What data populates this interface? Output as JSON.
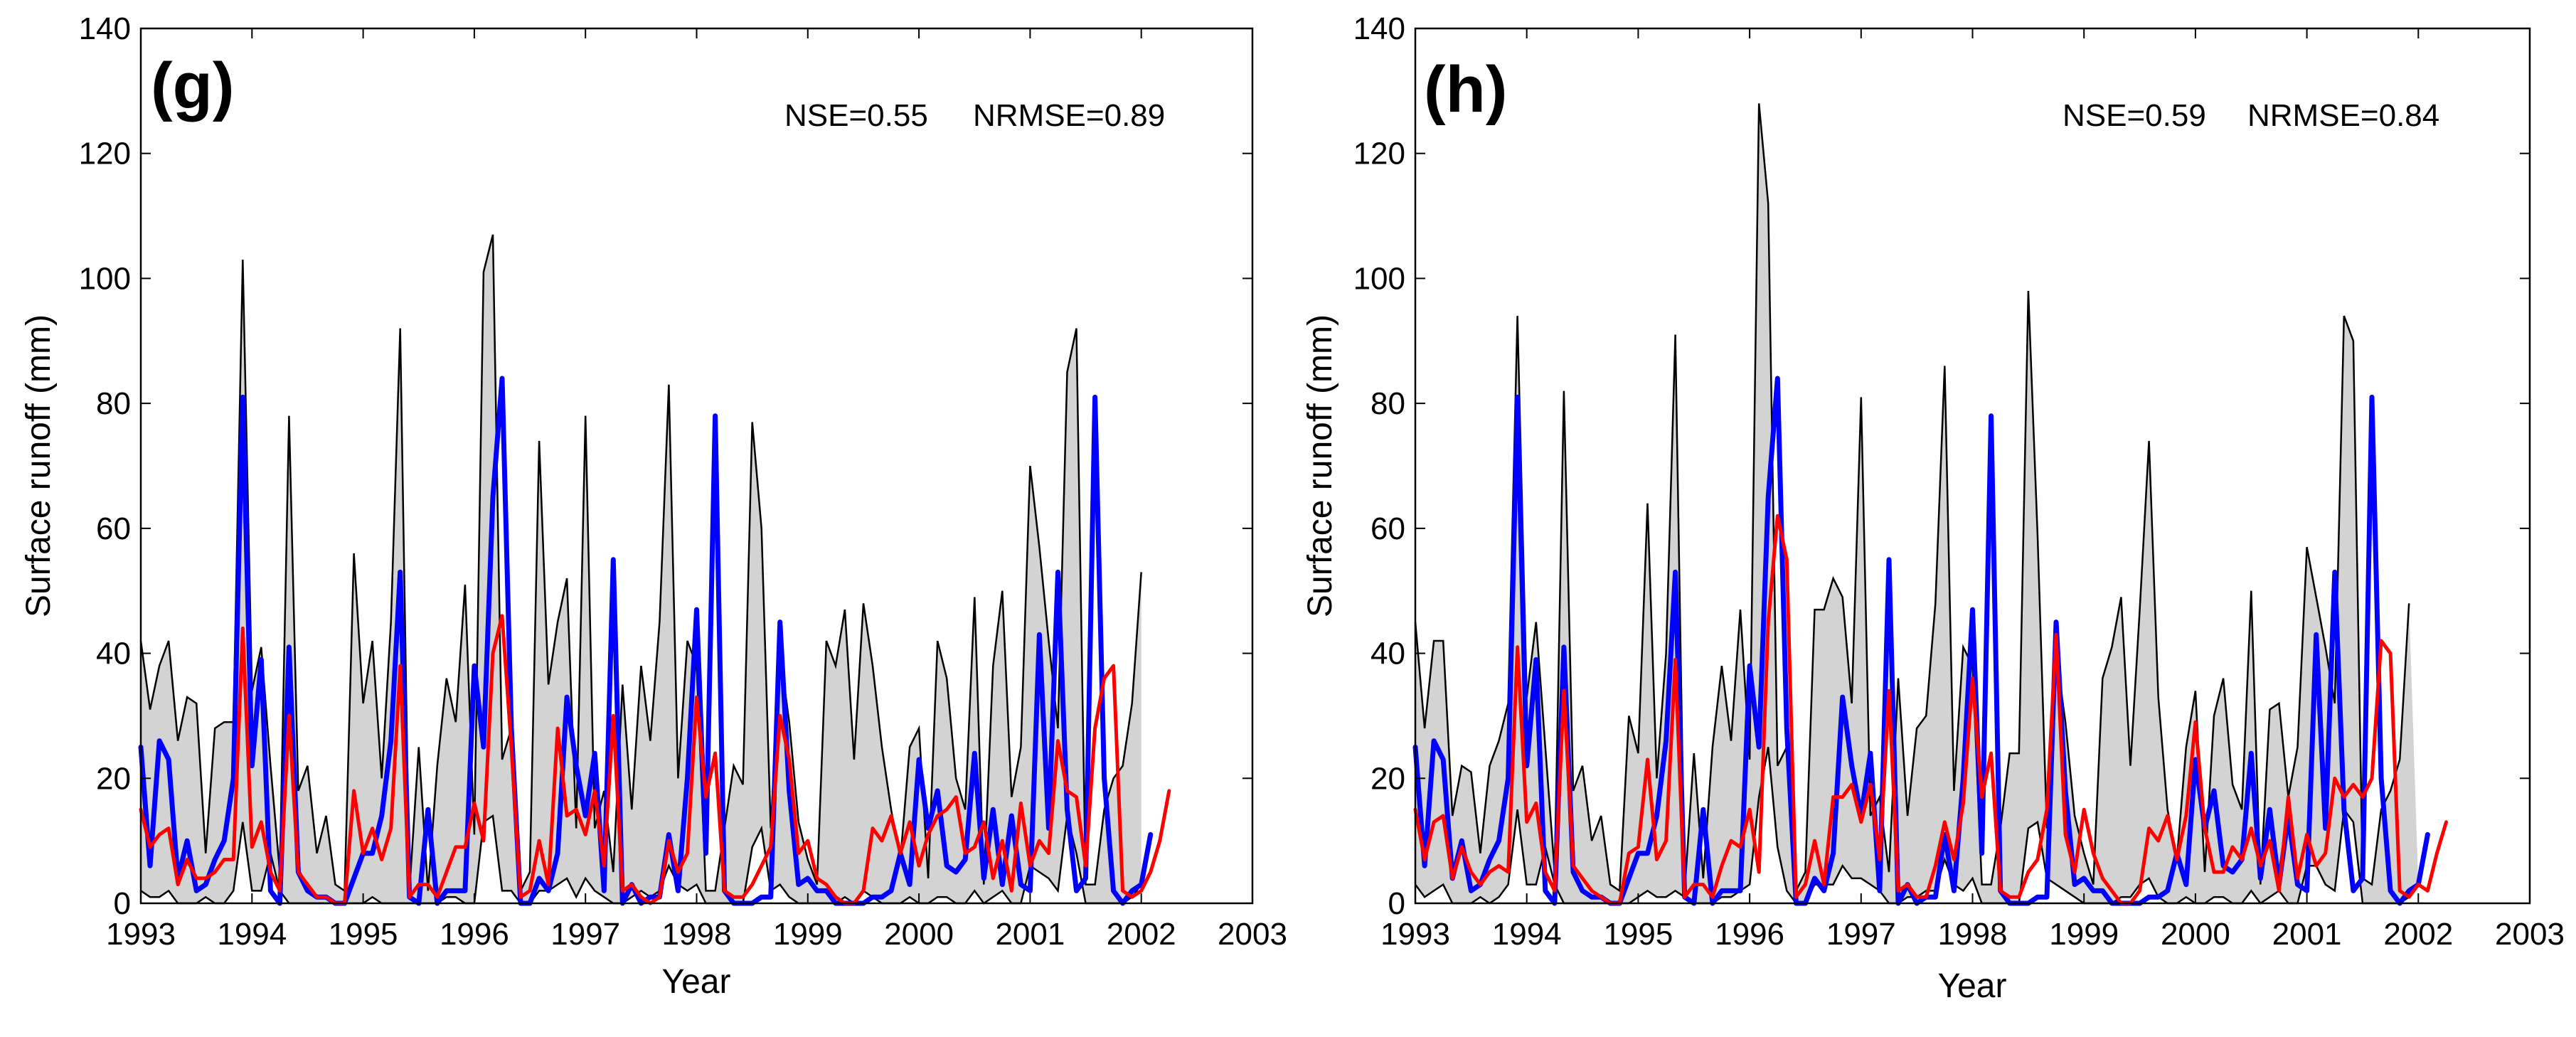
{
  "chart_data": [
    {
      "type": "line",
      "panel_label": "(g)",
      "annotation": {
        "nse": "NSE=0.55",
        "nrmse": "NRMSE=0.89"
      },
      "xlabel": "Year",
      "ylabel": "Surface runoff (mm)",
      "xlim": [
        1993,
        2003
      ],
      "ylim": [
        0,
        140
      ],
      "xticks": [
        1993,
        1994,
        1995,
        1996,
        1997,
        1998,
        1999,
        2000,
        2001,
        2002,
        2003
      ],
      "yticks": [
        0,
        20,
        40,
        60,
        80,
        100,
        120,
        140
      ],
      "grid": false,
      "legend": null,
      "months_per_year": 12,
      "series": [
        {
          "name": "band_upper",
          "role": "uncertainty-band-upper",
          "color": "#000000",
          "values": [
            42,
            31,
            38,
            42,
            26,
            33,
            32,
            8,
            28,
            29,
            29,
            103,
            34,
            41,
            22,
            5,
            78,
            18,
            22,
            8,
            14,
            3,
            2,
            56,
            32,
            42,
            20,
            45,
            92,
            2,
            25,
            2,
            22,
            36,
            29,
            51,
            11,
            101,
            107,
            23,
            28,
            2,
            5,
            74,
            35,
            45,
            52,
            12,
            78,
            12,
            18,
            5,
            35,
            15,
            38,
            26,
            45,
            83,
            20,
            42,
            38,
            2,
            2,
            12,
            22,
            19,
            77,
            60,
            12,
            40,
            29,
            13,
            7,
            3,
            42,
            38,
            47,
            23,
            48,
            38,
            25,
            15,
            7,
            25,
            28,
            4,
            42,
            36,
            20,
            15,
            49,
            3,
            38,
            50,
            17,
            25,
            70,
            57,
            42,
            28,
            85,
            92,
            3,
            3,
            15,
            20,
            22,
            32,
            53
          ]
        },
        {
          "name": "band_lower",
          "role": "uncertainty-band-lower",
          "color": "#000000",
          "values": [
            2,
            1,
            1,
            2,
            0,
            0,
            0,
            1,
            0,
            0,
            2,
            13,
            2,
            2,
            8,
            2,
            0,
            0,
            0,
            0,
            0,
            0,
            0,
            0,
            0,
            1,
            0,
            0,
            0,
            0,
            0,
            0,
            0,
            1,
            1,
            0,
            0,
            13,
            14,
            2,
            2,
            0,
            0,
            2,
            2,
            3,
            4,
            1,
            4,
            2,
            1,
            0,
            0,
            1,
            2,
            1,
            2,
            6,
            3,
            2,
            3,
            0,
            0,
            0,
            0,
            0,
            9,
            12,
            2,
            3,
            1,
            0,
            0,
            0,
            0,
            0,
            1,
            0,
            2,
            1,
            0,
            0,
            0,
            1,
            0,
            0,
            1,
            1,
            0,
            0,
            2,
            0,
            1,
            2,
            0,
            0,
            6,
            5,
            4,
            2,
            14,
            8,
            0,
            0,
            0,
            0,
            0,
            1,
            3
          ]
        },
        {
          "name": "observed",
          "role": "blue-line",
          "color": "#0000ff",
          "values": [
            25,
            6,
            26,
            23,
            4,
            10,
            2,
            3,
            7,
            10,
            20,
            81,
            22,
            39,
            2,
            0,
            41,
            5,
            2,
            1,
            1,
            0,
            0,
            4,
            8,
            8,
            14,
            26,
            53,
            1,
            0,
            15,
            0,
            2,
            2,
            2,
            38,
            25,
            65,
            84,
            28,
            0,
            0,
            4,
            2,
            8,
            33,
            22,
            14,
            24,
            2,
            55,
            0,
            3,
            0,
            1,
            1,
            11,
            2,
            20,
            47,
            8,
            78,
            2,
            0,
            0,
            0,
            1,
            1,
            45,
            18,
            3,
            4,
            2,
            2,
            0,
            0,
            0,
            0,
            1,
            1,
            2,
            8,
            3,
            23,
            12,
            18,
            6,
            5,
            7,
            24,
            4,
            15,
            3,
            14,
            3,
            2,
            43,
            12,
            53,
            15,
            2,
            4,
            81,
            20,
            2,
            0,
            2,
            3,
            11
          ]
        },
        {
          "name": "simulated",
          "role": "red-line",
          "color": "#ff0000",
          "values": [
            15,
            9,
            11,
            12,
            3,
            7,
            4,
            4,
            5,
            7,
            7,
            44,
            9,
            13,
            5,
            2,
            30,
            5,
            3,
            1,
            1,
            0,
            0,
            18,
            8,
            12,
            7,
            12,
            38,
            1,
            3,
            3,
            1,
            5,
            9,
            9,
            16,
            10,
            40,
            46,
            25,
            1,
            2,
            10,
            3,
            28,
            14,
            15,
            11,
            18,
            6,
            30,
            2,
            3,
            1,
            0,
            1,
            10,
            5,
            8,
            33,
            17,
            24,
            2,
            1,
            1,
            3,
            6,
            9,
            30,
            23,
            8,
            10,
            4,
            3,
            1,
            0,
            0,
            2,
            12,
            10,
            14,
            8,
            13,
            6,
            11,
            14,
            15,
            17,
            8,
            9,
            13,
            4,
            10,
            2,
            16,
            6,
            10,
            8,
            26,
            18,
            17,
            6,
            28,
            36,
            38,
            2,
            1,
            2,
            5,
            10,
            18
          ]
        }
      ]
    },
    {
      "type": "line",
      "panel_label": "(h)",
      "annotation": {
        "nse": "NSE=0.59",
        "nrmse": "NRMSE=0.84"
      },
      "xlabel": "Year",
      "ylabel": "Surface runoff (mm)",
      "xlim": [
        1993,
        2003
      ],
      "ylim": [
        0,
        140
      ],
      "xticks": [
        1993,
        1994,
        1995,
        1996,
        1997,
        1998,
        1999,
        2000,
        2001,
        2002,
        2003
      ],
      "yticks": [
        0,
        20,
        40,
        60,
        80,
        100,
        120,
        140
      ],
      "grid": false,
      "legend": null,
      "months_per_year": 12,
      "series": [
        {
          "name": "band_upper",
          "role": "uncertainty-band-upper",
          "color": "#000000",
          "values": [
            45,
            28,
            42,
            42,
            14,
            22,
            21,
            8,
            22,
            26,
            32,
            94,
            33,
            45,
            25,
            5,
            82,
            18,
            22,
            10,
            14,
            3,
            2,
            30,
            24,
            64,
            20,
            40,
            91,
            2,
            24,
            4,
            25,
            38,
            26,
            47,
            23,
            128,
            112,
            22,
            25,
            2,
            5,
            47,
            47,
            52,
            49,
            32,
            81,
            14,
            17,
            5,
            36,
            14,
            28,
            30,
            48,
            86,
            18,
            41,
            38,
            3,
            3,
            12,
            24,
            24,
            98,
            59,
            12,
            40,
            29,
            14,
            8,
            3,
            36,
            41,
            49,
            22,
            47,
            74,
            33,
            15,
            7,
            25,
            34,
            5,
            30,
            36,
            19,
            15,
            50,
            3,
            31,
            32,
            17,
            25,
            57,
            49,
            41,
            32,
            94,
            90,
            4,
            3,
            15,
            18,
            23,
            48
          ]
        },
        {
          "name": "band_lower",
          "role": "uncertainty-band-lower",
          "color": "#000000",
          "values": [
            3,
            1,
            2,
            3,
            0,
            0,
            0,
            1,
            0,
            1,
            3,
            15,
            3,
            3,
            9,
            3,
            0,
            0,
            0,
            0,
            0,
            0,
            0,
            0,
            1,
            2,
            1,
            1,
            2,
            1,
            0,
            0,
            0,
            1,
            1,
            2,
            3,
            17,
            25,
            9,
            2,
            0,
            0,
            3,
            3,
            3,
            6,
            4,
            4,
            3,
            2,
            0,
            0,
            1,
            1,
            2,
            2,
            7,
            3,
            2,
            4,
            0,
            0,
            0,
            0,
            0,
            12,
            13,
            4,
            3,
            2,
            1,
            0,
            0,
            0,
            0,
            1,
            1,
            3,
            4,
            1,
            0,
            0,
            1,
            0,
            0,
            1,
            1,
            0,
            0,
            2,
            0,
            1,
            2,
            0,
            0,
            6,
            6,
            3,
            2,
            15,
            13,
            0,
            0,
            0,
            0,
            0,
            1,
            3
          ]
        },
        {
          "name": "observed",
          "role": "blue-line",
          "color": "#0000ff",
          "values": [
            25,
            6,
            26,
            23,
            4,
            10,
            2,
            3,
            7,
            10,
            20,
            81,
            22,
            39,
            2,
            0,
            41,
            5,
            2,
            1,
            1,
            0,
            0,
            4,
            8,
            8,
            14,
            26,
            53,
            1,
            0,
            15,
            0,
            2,
            2,
            2,
            38,
            25,
            65,
            84,
            28,
            0,
            0,
            4,
            2,
            8,
            33,
            22,
            14,
            24,
            2,
            55,
            0,
            3,
            0,
            1,
            1,
            11,
            2,
            20,
            47,
            8,
            78,
            2,
            0,
            0,
            0,
            1,
            1,
            45,
            18,
            3,
            4,
            2,
            2,
            0,
            0,
            0,
            0,
            1,
            1,
            2,
            8,
            3,
            23,
            12,
            18,
            6,
            5,
            7,
            24,
            4,
            15,
            3,
            14,
            3,
            2,
            43,
            12,
            53,
            15,
            2,
            4,
            81,
            20,
            2,
            0,
            2,
            3,
            11
          ]
        },
        {
          "name": "simulated",
          "role": "red-line",
          "color": "#ff0000",
          "values": [
            15,
            7,
            13,
            14,
            4,
            9,
            5,
            3,
            5,
            6,
            5,
            41,
            13,
            16,
            5,
            2,
            34,
            6,
            4,
            2,
            1,
            0,
            0,
            8,
            9,
            23,
            7,
            10,
            39,
            1,
            3,
            3,
            1,
            6,
            10,
            9,
            15,
            5,
            45,
            62,
            55,
            1,
            3,
            10,
            3,
            17,
            17,
            19,
            13,
            19,
            7,
            34,
            2,
            3,
            1,
            1,
            6,
            13,
            7,
            16,
            36,
            17,
            24,
            2,
            1,
            1,
            5,
            7,
            15,
            43,
            11,
            5,
            15,
            8,
            4,
            2,
            0,
            0,
            2,
            12,
            10,
            14,
            7,
            14,
            29,
            12,
            5,
            5,
            9,
            7,
            12,
            6,
            10,
            2,
            17,
            4,
            11,
            6,
            8,
            20,
            17,
            19,
            17,
            20,
            42,
            40,
            2,
            1,
            3,
            2,
            8,
            13
          ]
        }
      ]
    }
  ]
}
